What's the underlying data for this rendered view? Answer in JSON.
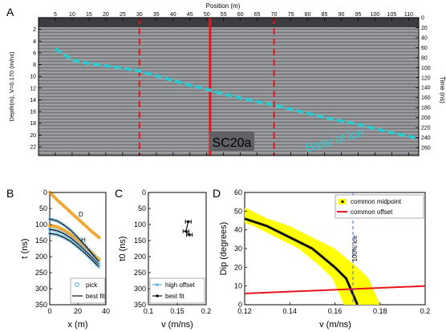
{
  "panel_letters": {
    "a": "A",
    "b": "B",
    "c": "C",
    "d": "D"
  },
  "chart_data": [
    {
      "panel": "A",
      "type": "heatmap",
      "description_of_marks": "GPR radargram with picked base-of-ice reflector",
      "xlabel": "Position (m)",
      "ylabel_left": "Depth(m), V=0.170 (m/ns)",
      "ylabel_right": "Time (ns)",
      "xlim": [
        0,
        113
      ],
      "ylim_depth": [
        0,
        23.5
      ],
      "ylim_time": [
        0,
        276
      ],
      "x_ticks": [
        5,
        10,
        15,
        20,
        25,
        30,
        35,
        40,
        45,
        50,
        55,
        60,
        65,
        70,
        75,
        80,
        85,
        90,
        95,
        100,
        105,
        110
      ],
      "depth_ticks": [
        2,
        4,
        6,
        8,
        10,
        12,
        14,
        16,
        18,
        20,
        22
      ],
      "time_ticks": [
        0,
        20,
        40,
        60,
        80,
        100,
        120,
        140,
        160,
        180,
        200,
        220,
        240,
        260
      ],
      "annotations": {
        "reflector_label": "Base of ice",
        "site_label": "SC20a"
      },
      "solid_line_x": 51,
      "dashed_lines_x": [
        30,
        70
      ],
      "reflector_x": [
        5,
        10,
        15,
        20,
        25,
        30,
        35,
        40,
        45,
        50,
        55,
        60,
        65,
        70,
        75,
        80,
        85,
        90,
        95,
        100,
        105,
        110,
        112
      ],
      "reflector_depth": [
        5.3,
        7.2,
        7.8,
        8.2,
        8.6,
        9.1,
        9.9,
        10.7,
        11.5,
        12.2,
        13.0,
        13.7,
        14.3,
        14.9,
        15.6,
        16.3,
        17.0,
        17.6,
        18.2,
        18.9,
        19.6,
        20.2,
        20.5
      ],
      "colors": {
        "reflector": "#2ec9cf",
        "site_line": "#e8141e"
      }
    },
    {
      "panel": "B",
      "type": "scatter",
      "xlabel": "x (m)",
      "ylabel": "t (ns)",
      "xlim": [
        0,
        40
      ],
      "ylim": [
        0,
        350
      ],
      "y_reversed": true,
      "x_ticks": [
        0,
        20,
        40
      ],
      "y_ticks": [
        0,
        50,
        100,
        150,
        200,
        250,
        300,
        350
      ],
      "legend": {
        "position": "bottom-right",
        "entries": [
          "pick",
          "best fit"
        ]
      },
      "labels": {
        "direct": "D",
        "hyperbola": "H"
      },
      "series": [
        {
          "name": "D",
          "x": [
            0,
            5,
            10,
            15,
            20,
            25,
            30,
            35
          ],
          "y": [
            0,
            22,
            42,
            62,
            82,
            102,
            122,
            140
          ]
        },
        {
          "name": "H",
          "x": [
            0,
            5,
            10,
            15,
            20,
            25,
            30,
            35
          ],
          "y": [
            103,
            107,
            117,
            131,
            149,
            168,
            188,
            209
          ]
        }
      ],
      "picks": [
        {
          "t0": 83,
          "x": [
            0,
            5,
            10,
            15,
            20,
            25,
            30,
            35
          ],
          "y": [
            83,
            88,
            101,
            118,
            140,
            164,
            190,
            216
          ]
        },
        {
          "t0": 115,
          "x": [
            0,
            5,
            10,
            15,
            20,
            25,
            30,
            35
          ],
          "y": [
            115,
            119,
            128,
            142,
            160,
            180,
            202,
            225
          ]
        },
        {
          "t0": 128,
          "x": [
            0,
            5,
            10,
            15,
            20,
            25,
            30,
            35
          ],
          "y": [
            128,
            131,
            140,
            153,
            170,
            189,
            210,
            232
          ]
        }
      ],
      "colors": {
        "direct": "#f0a632",
        "picks": "#5ab4e6",
        "fit": "#111111"
      }
    },
    {
      "panel": "C",
      "type": "scatter",
      "xlabel": "v (m/ns)",
      "ylabel": "t0 (ns)",
      "xlim": [
        0.1,
        0.2
      ],
      "ylim": [
        0,
        350
      ],
      "y_reversed": true,
      "x_ticks": [
        0.1,
        0.15,
        0.2
      ],
      "y_ticks": [
        0,
        50,
        100,
        150,
        200,
        250,
        300,
        350
      ],
      "legend": {
        "position": "bottom-right",
        "entries": [
          "high offset",
          "best fit"
        ]
      },
      "points": [
        {
          "v": 0.169,
          "t0": 91,
          "v_err": 0.005
        },
        {
          "v": 0.165,
          "t0": 121,
          "v_err": 0.005
        },
        {
          "v": 0.171,
          "t0": 132,
          "v_err": 0.005
        }
      ],
      "colors": {
        "high_offset": "#5ab4e6",
        "best_fit": "#111111"
      }
    },
    {
      "panel": "D",
      "type": "line",
      "xlabel": "v (m/ns)",
      "ylabel": "Dip (degrees)",
      "xlim": [
        0.12,
        0.2
      ],
      "ylim": [
        0,
        60
      ],
      "x_ticks": [
        0.12,
        0.14,
        0.16,
        0.18,
        0.2
      ],
      "y_ticks": [
        0,
        10,
        20,
        30,
        40,
        50,
        60
      ],
      "legend": {
        "position": "top-right",
        "entries": [
          "common midpoint",
          "common offset"
        ]
      },
      "annotation": "100% ice",
      "ice_velocity": 0.168,
      "series": [
        {
          "name": "common midpoint",
          "x": [
            0.12,
            0.13,
            0.14,
            0.15,
            0.16,
            0.165,
            0.17
          ],
          "y": [
            46,
            42,
            36,
            30,
            20,
            14,
            0
          ]
        },
        {
          "name": "common offset",
          "x": [
            0.12,
            0.2
          ],
          "y": [
            6,
            10
          ]
        }
      ],
      "band": {
        "x": [
          0.12,
          0.13,
          0.14,
          0.15,
          0.16,
          0.17,
          0.18
        ],
        "upper_x_shift": 0.01,
        "lower_x_shift": -0.006
      },
      "colors": {
        "midpoint": "#111111",
        "band": "#ffff00",
        "offset": "#e8141e",
        "ice_line": "#3a66e0"
      }
    }
  ]
}
